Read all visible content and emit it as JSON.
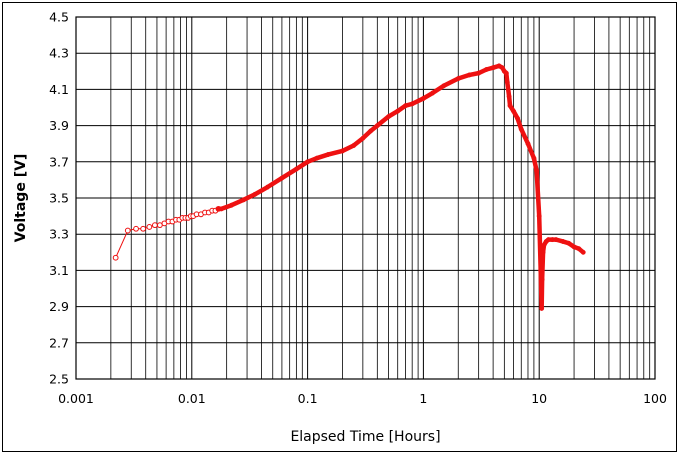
{
  "chart_data": {
    "type": "scatter",
    "title": "",
    "xlabel": "Elapsed Time [Hours]",
    "ylabel": "Voltage [V]",
    "x_scale": "log",
    "xlim": [
      0.001,
      100
    ],
    "ylim": [
      2.5,
      4.5
    ],
    "x_ticks": [
      0.001,
      0.01,
      0.1,
      1,
      10,
      100
    ],
    "x_tick_labels": [
      "0.001",
      "0.01",
      "0.1",
      "1",
      "10",
      "100"
    ],
    "y_ticks": [
      2.5,
      2.7,
      2.9,
      3.1,
      3.3,
      3.5,
      3.7,
      3.9,
      4.1,
      4.3,
      4.5
    ],
    "y_tick_labels": [
      "2.5",
      "2.7",
      "2.9",
      "3.1",
      "3.3",
      "3.5",
      "3.7",
      "3.9",
      "4.1",
      "4.3",
      "4.5"
    ],
    "grid": true,
    "legend": "none",
    "colors": {
      "series": "#ee1111",
      "grid": "#000000",
      "frame": "#000000"
    },
    "series": [
      {
        "marker": "open-circle",
        "x": [
          0.0022,
          0.0028,
          0.0033,
          0.0038,
          0.0043,
          0.0048,
          0.0053,
          0.0058,
          0.0063,
          0.0068,
          0.0073,
          0.0078,
          0.0083,
          0.0088,
          0.0093,
          0.0098,
          0.0103,
          0.011,
          0.012,
          0.013,
          0.014,
          0.015,
          0.016,
          0.017
        ],
        "y": [
          3.17,
          3.32,
          3.33,
          3.33,
          3.34,
          3.35,
          3.35,
          3.36,
          3.37,
          3.37,
          3.38,
          3.38,
          3.39,
          3.39,
          3.39,
          3.4,
          3.4,
          3.41,
          3.41,
          3.42,
          3.42,
          3.43,
          3.43,
          3.44
        ]
      },
      {
        "marker": "filled-dense",
        "x": [
          0.018,
          0.022,
          0.028,
          0.035,
          0.045,
          0.06,
          0.08,
          0.1,
          0.12,
          0.15,
          0.2,
          0.25,
          0.3,
          0.35,
          0.4,
          0.5,
          0.6,
          0.7,
          0.8,
          1.0,
          1.2,
          1.5,
          2.0,
          2.5,
          3.0,
          3.5,
          4.0,
          4.5,
          4.8,
          5.0,
          5.2,
          5.3,
          5.5,
          5.6,
          6.0,
          6.5,
          7.0,
          8.0,
          9.0,
          9.5,
          10.0,
          10.3,
          10.5,
          10.6,
          10.8,
          11.0,
          11.5,
          12.0,
          13.0,
          14.0,
          16.0,
          18.0,
          20.0,
          22.0,
          24.0
        ],
        "y": [
          3.44,
          3.46,
          3.49,
          3.52,
          3.56,
          3.61,
          3.66,
          3.7,
          3.72,
          3.74,
          3.76,
          3.79,
          3.83,
          3.87,
          3.9,
          3.95,
          3.98,
          4.01,
          4.02,
          4.05,
          4.08,
          4.12,
          4.16,
          4.18,
          4.19,
          4.21,
          4.22,
          4.23,
          4.22,
          4.2,
          4.19,
          4.14,
          4.06,
          4.01,
          3.98,
          3.94,
          3.88,
          3.8,
          3.72,
          3.65,
          3.4,
          3.1,
          2.89,
          3.05,
          3.2,
          3.24,
          3.26,
          3.27,
          3.27,
          3.27,
          3.26,
          3.25,
          3.23,
          3.22,
          3.2
        ]
      }
    ]
  }
}
